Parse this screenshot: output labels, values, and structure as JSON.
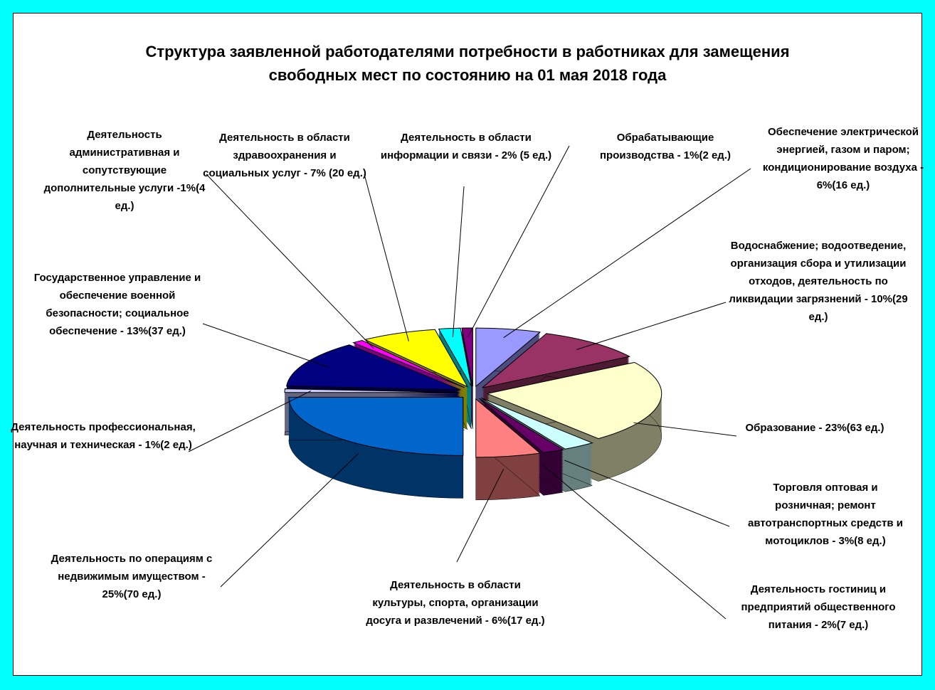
{
  "chart_data": {
    "type": "pie3d",
    "title": "Структура заявленной работодателями потребности в работниках для замещения свободных мест по состоянию на 01 мая 2018 года",
    "categories": [
      "Обеспечение электрической энергией, газом и паром; кондиционирование воздуха",
      "Водоснабжение; водоотведение, организация сбора и утилизации отходов, деятельность по ликвидации загрязнений",
      "Образование",
      "Торговля оптовая и розничная; ремонт автотранспортных средств и мотоциклов",
      "Деятельность гостиниц и предприятий общественного питания",
      "Деятельность в области культуры, спорта, организации досуга и развлечений",
      "Деятельность по операциям с недвижимым имуществом",
      "Деятельность профессиональная, научная и техническая",
      "Государственное управление и обеспечение военной безопасности; социальное обеспечение",
      "Деятельность административная и сопутствующие дополнительные услуги",
      "Деятельность в области здравоохранения и социальных услуг",
      "Деятельность в области информации и связи",
      "Обрабатывающие производства"
    ],
    "values": [
      6,
      10,
      23,
      3,
      2,
      6,
      25,
      1,
      13,
      1,
      7,
      2,
      1
    ],
    "value_labels": [
      "- 6%(16 ед.)",
      "- 10%(29 ед.)",
      "- 23%(63 ед.)",
      "- 3%(8 ед.)",
      "- 2%(7 ед.)",
      "- 6%(17 ед.)",
      "- 25%(70 ед.)",
      "- 1%(2 ед.)",
      "- 13%(37 ед.)",
      "-1%(4 ед.)",
      "- 7% (20 ед.)",
      "- 2% (5 ед.)",
      "- 1%(2 ед.)"
    ],
    "colors": [
      "#9999ff",
      "#993366",
      "#ffffcc",
      "#ccffff",
      "#660066",
      "#ff8080",
      "#0066cc",
      "#ccccff",
      "#000080",
      "#ff00ff",
      "#ffff00",
      "#00ffff",
      "#800080"
    ]
  }
}
